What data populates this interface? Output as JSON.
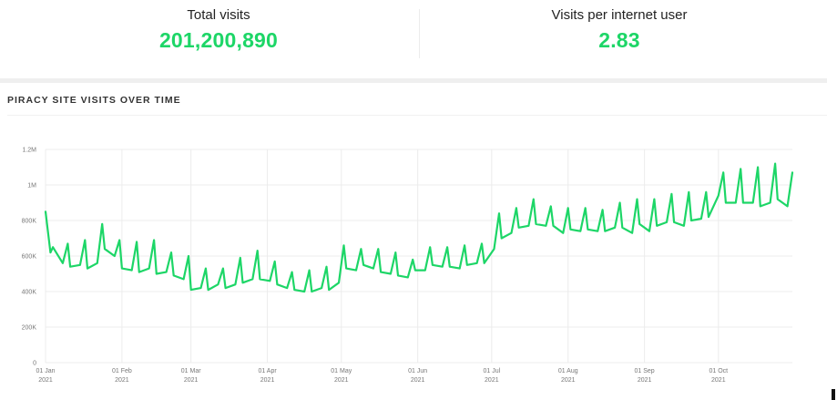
{
  "stats": {
    "total_label": "Total visits",
    "total_value": "201,200,890",
    "per_user_label": "Visits per internet user",
    "per_user_value": "2.83"
  },
  "section_title": "PIRACY SITE VISITS OVER TIME",
  "colors": {
    "accent": "#1dd667",
    "grid": "#ececec",
    "tick": "#777777"
  },
  "chart_data": {
    "type": "line",
    "title": "PIRACY SITE VISITS OVER TIME",
    "xlabel": "",
    "ylabel": "",
    "ylim": [
      0,
      1200000
    ],
    "grid": true,
    "y_ticks": [
      {
        "value": 0,
        "label": "0"
      },
      {
        "value": 200000,
        "label": "200K"
      },
      {
        "value": 400000,
        "label": "400K"
      },
      {
        "value": 600000,
        "label": "600K"
      },
      {
        "value": 800000,
        "label": "800K"
      },
      {
        "value": 1000000,
        "label": "1M"
      },
      {
        "value": 1200000,
        "label": "1.2M"
      }
    ],
    "x_ticks": [
      {
        "date": "2021-01-01",
        "label": "01 Jan",
        "year": "2021"
      },
      {
        "date": "2021-02-01",
        "label": "01 Feb",
        "year": "2021"
      },
      {
        "date": "2021-03-01",
        "label": "01 Mar",
        "year": "2021"
      },
      {
        "date": "2021-04-01",
        "label": "01 Apr",
        "year": "2021"
      },
      {
        "date": "2021-05-01",
        "label": "01 May",
        "year": "2021"
      },
      {
        "date": "2021-06-01",
        "label": "01 Jun",
        "year": "2021"
      },
      {
        "date": "2021-07-01",
        "label": "01 Jul",
        "year": "2021"
      },
      {
        "date": "2021-08-01",
        "label": "01 Aug",
        "year": "2021"
      },
      {
        "date": "2021-09-01",
        "label": "01 Sep",
        "year": "2021"
      },
      {
        "date": "2021-10-01",
        "label": "01 Oct",
        "year": "2021"
      }
    ],
    "series": [
      {
        "x": [
          "2021-01-01",
          "2021-01-03",
          "2021-01-04",
          "2021-01-08",
          "2021-01-10",
          "2021-01-11",
          "2021-01-15",
          "2021-01-17",
          "2021-01-18",
          "2021-01-22",
          "2021-01-24",
          "2021-01-25",
          "2021-01-29",
          "2021-01-31",
          "2021-02-01",
          "2021-02-05",
          "2021-02-07",
          "2021-02-08",
          "2021-02-12",
          "2021-02-14",
          "2021-02-15",
          "2021-02-19",
          "2021-02-21",
          "2021-02-22",
          "2021-02-26",
          "2021-02-28",
          "2021-03-01",
          "2021-03-05",
          "2021-03-07",
          "2021-03-08",
          "2021-03-12",
          "2021-03-14",
          "2021-03-15",
          "2021-03-19",
          "2021-03-21",
          "2021-03-22",
          "2021-03-26",
          "2021-03-28",
          "2021-03-29",
          "2021-04-02",
          "2021-04-04",
          "2021-04-05",
          "2021-04-09",
          "2021-04-11",
          "2021-04-12",
          "2021-04-16",
          "2021-04-18",
          "2021-04-19",
          "2021-04-23",
          "2021-04-25",
          "2021-04-26",
          "2021-04-30",
          "2021-05-02",
          "2021-05-03",
          "2021-05-07",
          "2021-05-09",
          "2021-05-10",
          "2021-05-14",
          "2021-05-16",
          "2021-05-17",
          "2021-05-21",
          "2021-05-23",
          "2021-05-24",
          "2021-05-28",
          "2021-05-30",
          "2021-05-31",
          "2021-06-04",
          "2021-06-06",
          "2021-06-07",
          "2021-06-11",
          "2021-06-13",
          "2021-06-14",
          "2021-06-18",
          "2021-06-20",
          "2021-06-21",
          "2021-06-25",
          "2021-06-27",
          "2021-06-28",
          "2021-07-02",
          "2021-07-04",
          "2021-07-05",
          "2021-07-09",
          "2021-07-11",
          "2021-07-12",
          "2021-07-16",
          "2021-07-18",
          "2021-07-19",
          "2021-07-23",
          "2021-07-25",
          "2021-07-26",
          "2021-07-30",
          "2021-08-01",
          "2021-08-02",
          "2021-08-06",
          "2021-08-08",
          "2021-08-09",
          "2021-08-13",
          "2021-08-15",
          "2021-08-16",
          "2021-08-20",
          "2021-08-22",
          "2021-08-23",
          "2021-08-27",
          "2021-08-29",
          "2021-08-30",
          "2021-09-03",
          "2021-09-05",
          "2021-09-06",
          "2021-09-10",
          "2021-09-12",
          "2021-09-13",
          "2021-09-17",
          "2021-09-19",
          "2021-09-20",
          "2021-09-24",
          "2021-09-26",
          "2021-09-27",
          "2021-10-01",
          "2021-10-03",
          "2021-10-04",
          "2021-10-08",
          "2021-10-10",
          "2021-10-11",
          "2021-10-15",
          "2021-10-17",
          "2021-10-18",
          "2021-10-22",
          "2021-10-24",
          "2021-10-25",
          "2021-10-29",
          "2021-10-31"
        ],
        "y": [
          850000,
          620000,
          650000,
          560000,
          670000,
          540000,
          550000,
          690000,
          530000,
          560000,
          780000,
          640000,
          600000,
          690000,
          530000,
          520000,
          680000,
          510000,
          530000,
          690000,
          500000,
          510000,
          620000,
          490000,
          470000,
          600000,
          410000,
          420000,
          530000,
          410000,
          440000,
          530000,
          420000,
          440000,
          590000,
          450000,
          470000,
          630000,
          470000,
          460000,
          570000,
          440000,
          420000,
          510000,
          410000,
          400000,
          520000,
          400000,
          420000,
          540000,
          410000,
          450000,
          660000,
          530000,
          520000,
          640000,
          550000,
          530000,
          640000,
          510000,
          500000,
          620000,
          490000,
          480000,
          580000,
          520000,
          520000,
          650000,
          550000,
          540000,
          650000,
          540000,
          530000,
          660000,
          550000,
          560000,
          670000,
          560000,
          640000,
          840000,
          700000,
          730000,
          870000,
          760000,
          770000,
          920000,
          780000,
          770000,
          880000,
          770000,
          730000,
          870000,
          750000,
          740000,
          870000,
          750000,
          740000,
          860000,
          740000,
          760000,
          900000,
          760000,
          730000,
          920000,
          780000,
          740000,
          920000,
          770000,
          790000,
          950000,
          790000,
          770000,
          960000,
          800000,
          810000,
          960000,
          820000,
          940000,
          1070000,
          900000,
          900000,
          1090000,
          900000,
          900000,
          1100000,
          880000,
          900000,
          1120000,
          920000,
          880000,
          1070000
        ]
      }
    ]
  }
}
